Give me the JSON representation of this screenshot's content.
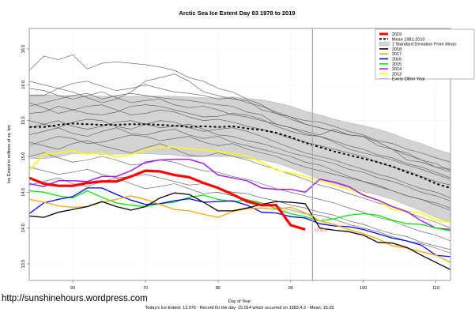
{
  "watermark": "http://sunshinehours.wordpress.com",
  "chart_data": {
    "type": "line",
    "title": "Arctic Sea Ice Extent Day 93 1978 to 2019",
    "xlabel": "Day of Year",
    "ylabel": "Ice Extent in millions of sq. km",
    "footer": "Today's Ice Extent: 13.976  - Record for the day: 15.914 which occurred on 1983.4.3  - Mean: 15.09",
    "xlim": [
      54,
      112
    ],
    "ylim": [
      13.3,
      16.8
    ],
    "xticks": [
      60,
      70,
      80,
      90,
      100,
      110
    ],
    "yticks": [
      13.5,
      14.0,
      14.5,
      15.0,
      15.5,
      16.0,
      16.5
    ],
    "ytick_labels": [
      "13.5",
      "14.0",
      "14.5",
      "15.0",
      "15.5",
      "16.0",
      "16.5"
    ],
    "grid": true,
    "current_day_marker": 93,
    "current_value_label": "13.976",
    "legend_position": "top-right",
    "legend": [
      {
        "label": "2019",
        "color": "#ff0000",
        "style": "thick"
      },
      {
        "label": "Mean 1981-2010",
        "color": "#000000",
        "style": "dashed"
      },
      {
        "label": "1 Standard Deviation From Mean",
        "color": "#d3d3d3",
        "style": "band"
      },
      {
        "label": "2018",
        "color": "#000000",
        "style": "solid"
      },
      {
        "label": "2017",
        "color": "#ffa500",
        "style": "solid"
      },
      {
        "label": "2016",
        "color": "#0000ff",
        "style": "solid"
      },
      {
        "label": "2015",
        "color": "#00ee00",
        "style": "solid"
      },
      {
        "label": "2014",
        "color": "#a020f0",
        "style": "solid"
      },
      {
        "label": "2013",
        "color": "#ffff00",
        "style": "solid"
      },
      {
        "label": "Every Other Year",
        "color": "#808080",
        "style": "thin"
      }
    ],
    "x": [
      54,
      56,
      58,
      60,
      62,
      64,
      66,
      68,
      70,
      72,
      74,
      76,
      78,
      80,
      82,
      84,
      86,
      88,
      90,
      92,
      94,
      96,
      98,
      100,
      102,
      104,
      106,
      108,
      110,
      112
    ],
    "mean": [
      15.41,
      15.41,
      15.44,
      15.46,
      15.45,
      15.44,
      15.44,
      15.45,
      15.45,
      15.44,
      15.43,
      15.41,
      15.42,
      15.41,
      15.42,
      15.39,
      15.37,
      15.33,
      15.27,
      15.19,
      15.13,
      15.07,
      15.02,
      14.97,
      14.92,
      14.86,
      14.78,
      14.71,
      14.62,
      14.56
    ],
    "sd_upper": [
      15.86,
      15.86,
      15.85,
      15.85,
      15.84,
      15.84,
      15.84,
      15.84,
      15.84,
      15.84,
      15.84,
      15.83,
      15.82,
      15.82,
      15.83,
      15.81,
      15.79,
      15.75,
      15.7,
      15.63,
      15.58,
      15.52,
      15.47,
      15.43,
      15.38,
      15.32,
      15.24,
      15.18,
      15.1,
      15.04
    ],
    "sd_lower": [
      14.97,
      14.97,
      14.99,
      15.04,
      15.04,
      15.03,
      15.03,
      15.04,
      15.04,
      15.03,
      15.02,
      14.99,
      15.0,
      15.0,
      15.0,
      14.97,
      14.95,
      14.91,
      14.84,
      14.76,
      14.68,
      14.62,
      14.56,
      14.51,
      14.46,
      14.4,
      14.32,
      14.24,
      14.15,
      14.08
    ],
    "series": [
      {
        "name": "2019",
        "color": "#ff0000",
        "width": 3.2,
        "values": [
          14.7,
          14.62,
          14.59,
          14.59,
          14.63,
          14.65,
          14.65,
          14.72,
          14.8,
          14.79,
          14.74,
          14.71,
          14.63,
          14.56,
          14.47,
          14.37,
          14.32,
          14.32,
          14.04,
          13.98,
          null,
          null,
          null,
          null,
          null,
          null,
          null,
          null,
          null,
          null
        ]
      },
      {
        "name": "2018",
        "color": "#000000",
        "width": 1.3,
        "values": [
          14.17,
          14.15,
          14.22,
          14.26,
          14.3,
          14.37,
          14.3,
          14.25,
          14.3,
          14.42,
          14.49,
          14.47,
          14.36,
          14.24,
          14.24,
          14.28,
          14.33,
          14.37,
          14.36,
          14.34,
          14.0,
          13.97,
          13.95,
          13.9,
          13.8,
          13.79,
          13.73,
          13.62,
          13.52,
          13.42
        ]
      },
      {
        "name": "2017",
        "color": "#ffa500",
        "width": 1.3,
        "values": [
          14.4,
          14.36,
          14.31,
          14.29,
          14.3,
          14.36,
          14.4,
          14.45,
          14.4,
          14.33,
          14.26,
          14.24,
          14.19,
          14.15,
          14.23,
          14.27,
          14.28,
          14.26,
          14.29,
          14.21,
          14.1,
          14.05,
          13.98,
          13.92,
          13.85,
          13.75,
          13.72,
          13.67,
          13.62,
          13.52
        ]
      },
      {
        "name": "2016",
        "color": "#0000ff",
        "width": 1.3,
        "values": [
          14.2,
          14.35,
          14.4,
          14.44,
          14.56,
          14.56,
          14.47,
          14.39,
          14.33,
          14.34,
          14.38,
          14.41,
          14.36,
          14.37,
          14.38,
          14.32,
          14.22,
          14.21,
          14.16,
          14.14,
          14.06,
          14.03,
          14.02,
          13.98,
          13.92,
          13.86,
          13.82,
          13.76,
          13.62,
          13.6
        ]
      },
      {
        "name": "2015",
        "color": "#00ee00",
        "width": 1.3,
        "values": [
          14.52,
          14.5,
          14.45,
          14.42,
          14.52,
          14.43,
          14.35,
          14.32,
          14.3,
          14.34,
          14.36,
          14.43,
          14.46,
          14.4,
          14.37,
          14.39,
          14.35,
          14.27,
          14.2,
          14.16,
          14.1,
          14.13,
          14.18,
          14.2,
          14.18,
          14.11,
          14.06,
          14.05,
          14.0,
          13.96
        ]
      },
      {
        "name": "2014",
        "color": "#a020f0",
        "width": 1.5,
        "values": [
          14.62,
          14.58,
          14.66,
          14.66,
          14.65,
          14.72,
          14.72,
          14.8,
          14.92,
          14.95,
          14.96,
          14.96,
          14.9,
          14.74,
          14.7,
          14.66,
          14.56,
          14.54,
          14.54,
          14.5,
          14.68,
          14.64,
          14.58,
          14.46,
          14.39,
          14.3,
          14.23,
          14.1,
          14.0,
          13.98
        ]
      },
      {
        "name": "2013",
        "color": "#ffff00",
        "width": 1.5,
        "values": [
          14.8,
          15.03,
          15.05,
          15.08,
          15.03,
          15.05,
          14.99,
          15.03,
          15.09,
          15.13,
          15.13,
          15.11,
          15.09,
          15.07,
          15.04,
          15.01,
          14.92,
          14.81,
          14.77,
          14.72,
          14.66,
          14.6,
          14.54,
          14.47,
          14.39,
          14.26,
          14.23,
          14.21,
          14.11,
          14.08
        ]
      }
    ],
    "every_other_year": [
      [
        16.2,
        16.4,
        16.35,
        16.42,
        16.22,
        16.3,
        16.32,
        16.3,
        16.28,
        16.25,
        16.2,
        16.1,
        16.05,
        15.95,
        15.9,
        15.8,
        15.72,
        15.6,
        15.55,
        15.45,
        15.4,
        15.35,
        15.3,
        15.28,
        15.2,
        15.1,
        15.05,
        14.95,
        14.9,
        14.8
      ],
      [
        15.85,
        15.85,
        15.95,
        15.9,
        15.82,
        15.75,
        15.8,
        15.9,
        16.05,
        16.1,
        16.15,
        16.05,
        15.9,
        15.85,
        15.8,
        15.78,
        15.65,
        15.6,
        15.52,
        15.45,
        15.4,
        15.35,
        15.3,
        15.28,
        15.15,
        15.1,
        14.95,
        14.92,
        14.85,
        14.78
      ],
      [
        15.7,
        15.75,
        15.8,
        15.85,
        15.88,
        15.8,
        15.85,
        15.88,
        15.85,
        15.82,
        15.8,
        15.78,
        15.75,
        15.72,
        15.7,
        15.62,
        15.58,
        15.45,
        15.4,
        15.35,
        15.3,
        15.38,
        15.3,
        15.28,
        15.2,
        15.1,
        15.02,
        14.95,
        14.85,
        14.82
      ],
      [
        15.6,
        15.62,
        15.7,
        15.65,
        15.6,
        15.58,
        15.62,
        15.7,
        15.72,
        15.7,
        15.65,
        15.6,
        15.55,
        15.56,
        15.6,
        15.58,
        15.52,
        15.42,
        15.35,
        15.3,
        15.28,
        15.2,
        15.1,
        15.05,
        15.0,
        14.95,
        14.88,
        14.82,
        14.75,
        14.68
      ],
      [
        15.5,
        15.45,
        15.4,
        15.48,
        15.52,
        15.5,
        15.42,
        15.38,
        15.45,
        15.5,
        15.48,
        15.4,
        15.35,
        15.38,
        15.4,
        15.35,
        15.28,
        15.2,
        15.12,
        15.05,
        15.0,
        14.95,
        14.88,
        14.82,
        14.75,
        14.7,
        14.62,
        14.55,
        14.5,
        14.42
      ],
      [
        15.3,
        15.35,
        15.4,
        15.32,
        15.28,
        15.35,
        15.4,
        15.32,
        15.3,
        15.35,
        15.38,
        15.3,
        15.25,
        15.28,
        15.2,
        15.15,
        15.1,
        15.05,
        15.0,
        14.92,
        14.88,
        14.8,
        14.72,
        14.65,
        14.6,
        14.52,
        14.45,
        14.4,
        14.32,
        14.25
      ],
      [
        15.2,
        15.15,
        15.1,
        15.18,
        15.22,
        15.15,
        15.1,
        15.05,
        15.12,
        15.18,
        15.1,
        15.02,
        15.0,
        15.05,
        15.0,
        14.95,
        14.88,
        14.82,
        14.75,
        14.68,
        14.6,
        14.55,
        14.48,
        14.42,
        14.35,
        14.3,
        14.22,
        14.15,
        14.08,
        14.0
      ],
      [
        15.0,
        15.05,
        14.98,
        14.92,
        14.95,
        15.0,
        14.95,
        14.88,
        14.9,
        14.95,
        14.92,
        14.85,
        14.8,
        14.78,
        14.72,
        14.68,
        14.62,
        14.55,
        14.5,
        14.45,
        14.4,
        14.35,
        14.28,
        14.22,
        14.15,
        14.1,
        14.02,
        13.95,
        13.9,
        13.82
      ],
      [
        14.85,
        14.8,
        14.75,
        14.78,
        14.82,
        14.75,
        14.7,
        14.72,
        14.75,
        14.7,
        14.65,
        14.6,
        14.62,
        14.55,
        14.5,
        14.48,
        14.42,
        14.38,
        14.32,
        14.28,
        14.22,
        14.18,
        14.1,
        14.05,
        13.98,
        13.92,
        13.88,
        13.8,
        13.75,
        13.7
      ],
      [
        16.05,
        16.0,
        15.95,
        16.02,
        16.05,
        15.98,
        15.92,
        15.95,
        16.0,
        15.95,
        15.9,
        15.88,
        15.85,
        15.8,
        15.82,
        15.75,
        15.7,
        15.62,
        15.55,
        15.5,
        15.48,
        15.42,
        15.35,
        15.3,
        15.22,
        15.18,
        15.1,
        15.05,
        14.98,
        14.92
      ],
      [
        15.75,
        15.68,
        15.6,
        15.65,
        15.7,
        15.72,
        15.65,
        15.58,
        15.6,
        15.65,
        15.62,
        15.55,
        15.5,
        15.52,
        15.48,
        15.42,
        15.38,
        15.32,
        15.25,
        15.2,
        15.15,
        15.1,
        15.05,
        15.0,
        14.92,
        14.85,
        14.8,
        14.72,
        14.65,
        14.6
      ],
      [
        15.4,
        15.45,
        15.5,
        15.42,
        15.38,
        15.42,
        15.48,
        15.5,
        15.45,
        15.4,
        15.42,
        15.45,
        15.38,
        15.3,
        15.28,
        15.22,
        15.18,
        15.12,
        15.05,
        15.0,
        14.95,
        14.9,
        14.82,
        14.78,
        14.7,
        14.65,
        14.58,
        14.5,
        14.45,
        14.38
      ],
      [
        14.6,
        14.65,
        14.7,
        14.62,
        14.58,
        14.65,
        14.7,
        14.62,
        14.55,
        14.58,
        14.62,
        14.55,
        14.48,
        14.5,
        14.45,
        14.4,
        14.35,
        14.3,
        14.25,
        14.2,
        14.18,
        14.12,
        14.05,
        14.0,
        13.95,
        13.88,
        13.82,
        13.78,
        13.72,
        13.65
      ],
      [
        15.95,
        15.92,
        15.85,
        15.8,
        15.85,
        15.9,
        15.82,
        15.75,
        15.78,
        15.8,
        15.72,
        15.68,
        15.7,
        15.65,
        15.58,
        15.55,
        15.5,
        15.45,
        15.4,
        15.32,
        15.28,
        15.22,
        15.15,
        15.1,
        15.02,
        14.98,
        14.9,
        14.85,
        14.78,
        14.7
      ],
      [
        15.15,
        15.22,
        15.28,
        15.25,
        15.18,
        15.2,
        15.25,
        15.3,
        15.28,
        15.22,
        15.25,
        15.28,
        15.2,
        15.15,
        15.18,
        15.1,
        15.05,
        15.0,
        14.92,
        14.85,
        14.8,
        14.75,
        14.7,
        14.65,
        14.58,
        14.52,
        14.45,
        14.4,
        14.35,
        14.28
      ]
    ]
  }
}
